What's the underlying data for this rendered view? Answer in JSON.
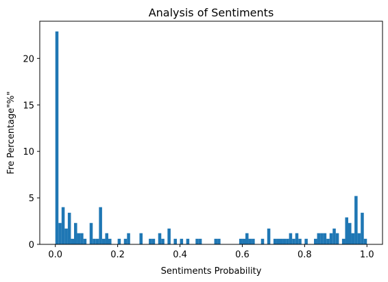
{
  "chart_data": {
    "type": "bar",
    "title": "Analysis of Sentiments",
    "xlabel": "Sentiments Probability",
    "ylabel": "Fre Percentage\"%\"",
    "xlim": [
      -0.05,
      1.05
    ],
    "ylim": [
      0,
      24
    ],
    "xticks": [
      {
        "value": 0.0,
        "label": "0.0"
      },
      {
        "value": 0.2,
        "label": "0.2"
      },
      {
        "value": 0.4,
        "label": "0.4"
      },
      {
        "value": 0.6,
        "label": "0.6"
      },
      {
        "value": 0.8,
        "label": "0.8"
      },
      {
        "value": 1.0,
        "label": "1.0"
      }
    ],
    "yticks": [
      {
        "value": 0,
        "label": "0"
      },
      {
        "value": 5,
        "label": "5"
      },
      {
        "value": 10,
        "label": "10"
      },
      {
        "value": 15,
        "label": "15"
      },
      {
        "value": 20,
        "label": "20"
      }
    ],
    "grid": false,
    "bar_color": "#1f77b4",
    "bin_start": 0.0,
    "bin_width": 0.01,
    "values": [
      22.9,
      2.3,
      4.0,
      1.7,
      3.4,
      0.6,
      2.3,
      1.2,
      1.2,
      0.6,
      0.0,
      2.3,
      0.6,
      0.6,
      4.0,
      0.6,
      1.2,
      0.6,
      0.0,
      0.0,
      0.6,
      0.0,
      0.6,
      1.2,
      0.0,
      0.0,
      0.0,
      1.2,
      0.0,
      0.0,
      0.6,
      0.6,
      0.0,
      1.2,
      0.6,
      0.0,
      1.7,
      0.0,
      0.6,
      0.0,
      0.6,
      0.0,
      0.6,
      0.0,
      0.0,
      0.6,
      0.6,
      0.0,
      0.0,
      0.0,
      0.0,
      0.6,
      0.6,
      0.0,
      0.0,
      0.0,
      0.0,
      0.0,
      0.0,
      0.6,
      0.6,
      1.2,
      0.6,
      0.6,
      0.0,
      0.0,
      0.6,
      0.0,
      1.7,
      0.0,
      0.6,
      0.6,
      0.6,
      0.6,
      0.6,
      1.2,
      0.6,
      1.2,
      0.6,
      0.0,
      0.6,
      0.0,
      0.0,
      0.6,
      1.2,
      1.2,
      1.2,
      0.6,
      1.2,
      1.7,
      1.2,
      0.0,
      0.6,
      2.9,
      2.3,
      1.2,
      5.2,
      1.2,
      3.4,
      0.6
    ]
  }
}
